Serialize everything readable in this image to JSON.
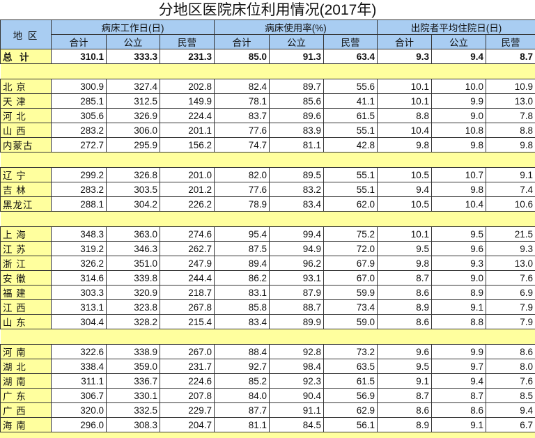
{
  "title": "分地区医院床位利用情况(2017年)",
  "header": {
    "region": "地 区",
    "groups": [
      "病床工作日(日)",
      "病床使用率(%)",
      "出院者平均住院日(日)"
    ],
    "subcols": [
      "合计",
      "公立",
      "民营",
      "合计",
      "公立",
      "民营",
      "合计",
      "公立",
      "民营"
    ]
  },
  "total": {
    "label": "总  计",
    "values": [
      "310.1",
      "333.3",
      "231.3",
      "85.0",
      "91.3",
      "63.4",
      "9.3",
      "9.4",
      "8.7"
    ]
  },
  "colors": {
    "header_bg": "#a9cdf2",
    "label_bg": "#ffff9e"
  },
  "groups": [
    [
      {
        "label": "北 京",
        "values": [
          "300.9",
          "327.4",
          "202.8",
          "82.4",
          "89.7",
          "55.6",
          "10.1",
          "10.0",
          "10.9"
        ]
      },
      {
        "label": "天 津",
        "values": [
          "285.1",
          "312.5",
          "149.9",
          "78.1",
          "85.6",
          "41.1",
          "10.1",
          "9.9",
          "13.0"
        ]
      },
      {
        "label": "河 北",
        "values": [
          "305.6",
          "326.9",
          "224.4",
          "83.7",
          "89.6",
          "61.5",
          "8.8",
          "9.0",
          "7.8"
        ]
      },
      {
        "label": "山 西",
        "values": [
          "283.2",
          "306.0",
          "201.1",
          "77.6",
          "83.9",
          "55.1",
          "10.4",
          "10.8",
          "8.8"
        ]
      },
      {
        "label": "内蒙古",
        "values": [
          "272.7",
          "295.9",
          "156.2",
          "74.7",
          "81.1",
          "42.8",
          "9.8",
          "9.8",
          "9.8"
        ]
      }
    ],
    [
      {
        "label": "辽 宁",
        "values": [
          "299.2",
          "326.8",
          "201.0",
          "82.0",
          "89.5",
          "55.1",
          "10.5",
          "10.7",
          "9.1"
        ]
      },
      {
        "label": "吉 林",
        "values": [
          "283.2",
          "303.5",
          "201.2",
          "77.6",
          "83.2",
          "55.1",
          "9.4",
          "9.8",
          "7.4"
        ]
      },
      {
        "label": "黑龙江",
        "values": [
          "288.1",
          "304.2",
          "226.2",
          "78.9",
          "83.4",
          "62.0",
          "10.5",
          "10.4",
          "10.6"
        ]
      }
    ],
    [
      {
        "label": "上 海",
        "values": [
          "348.3",
          "363.0",
          "274.6",
          "95.4",
          "99.4",
          "75.2",
          "10.1",
          "9.5",
          "21.5"
        ]
      },
      {
        "label": "江 苏",
        "values": [
          "319.2",
          "346.3",
          "262.7",
          "87.5",
          "94.9",
          "72.0",
          "9.5",
          "9.6",
          "9.3"
        ]
      },
      {
        "label": "浙 江",
        "values": [
          "326.2",
          "351.0",
          "247.9",
          "89.4",
          "96.2",
          "67.9",
          "9.8",
          "9.3",
          "13.0"
        ]
      },
      {
        "label": "安 徽",
        "values": [
          "314.6",
          "339.8",
          "244.4",
          "86.2",
          "93.1",
          "67.0",
          "8.7",
          "9.0",
          "7.6"
        ]
      },
      {
        "label": "福 建",
        "values": [
          "303.3",
          "320.9",
          "218.7",
          "83.1",
          "87.9",
          "59.9",
          "8.6",
          "8.9",
          "6.9"
        ]
      },
      {
        "label": "江 西",
        "values": [
          "313.1",
          "323.8",
          "267.8",
          "85.8",
          "88.7",
          "73.4",
          "8.9",
          "9.1",
          "7.9"
        ]
      },
      {
        "label": "山 东",
        "values": [
          "304.4",
          "328.2",
          "215.4",
          "83.4",
          "89.9",
          "59.0",
          "8.6",
          "8.8",
          "7.9"
        ]
      }
    ],
    [
      {
        "label": "河 南",
        "values": [
          "322.6",
          "338.9",
          "267.0",
          "88.4",
          "92.8",
          "73.2",
          "9.6",
          "9.9",
          "8.6"
        ]
      },
      {
        "label": "湖 北",
        "values": [
          "338.4",
          "359.0",
          "231.7",
          "92.7",
          "98.4",
          "63.5",
          "9.5",
          "9.7",
          "8.0"
        ]
      },
      {
        "label": "湖 南",
        "values": [
          "311.1",
          "336.7",
          "224.6",
          "85.2",
          "92.3",
          "61.5",
          "9.1",
          "9.4",
          "7.6"
        ]
      },
      {
        "label": "广 东",
        "values": [
          "306.7",
          "330.1",
          "207.8",
          "84.0",
          "90.4",
          "56.9",
          "8.7",
          "8.7",
          "8.5"
        ]
      },
      {
        "label": "广 西",
        "values": [
          "320.0",
          "332.5",
          "229.7",
          "87.7",
          "91.1",
          "62.9",
          "8.6",
          "8.6",
          "9.4"
        ]
      },
      {
        "label": "海 南",
        "values": [
          "296.0",
          "308.3",
          "204.7",
          "81.1",
          "84.5",
          "56.1",
          "8.9",
          "9.1",
          "6.7"
        ]
      }
    ]
  ]
}
